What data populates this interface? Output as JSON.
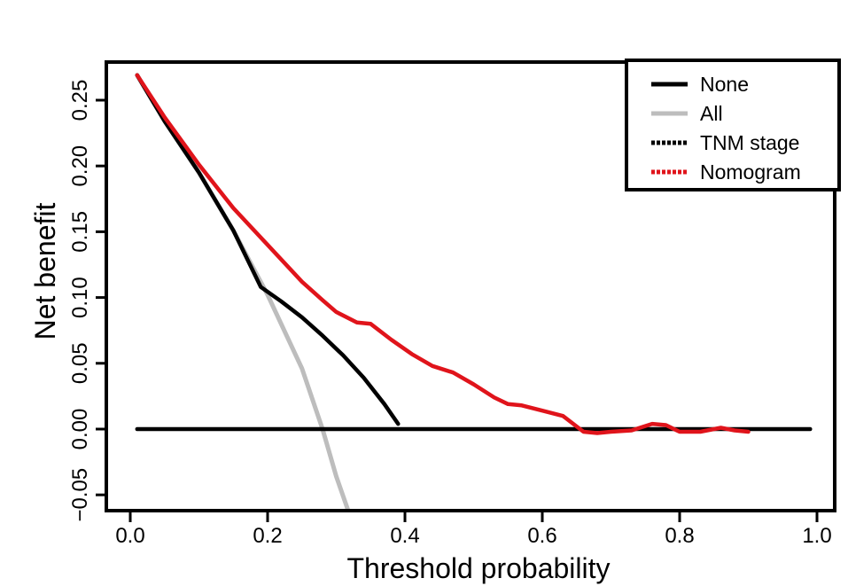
{
  "chart_data": {
    "type": "line",
    "title": "",
    "xlabel": "Threshold probability",
    "ylabel": "Net benefit",
    "xlim": [
      0.0,
      1.0
    ],
    "ylim": [
      -0.05,
      0.25
    ],
    "xticks": [
      "0.0",
      "0.2",
      "0.4",
      "0.6",
      "0.8",
      "1.0"
    ],
    "yticks": [
      "−0.05",
      "0.00",
      "0.05",
      "0.10",
      "0.15",
      "0.20",
      "0.25"
    ],
    "grid": false,
    "legend_position": "top-right",
    "series": [
      {
        "name": "None",
        "color": "#000000",
        "style": "solid",
        "x": [
          0.01,
          0.99
        ],
        "y": [
          0.0,
          0.0
        ]
      },
      {
        "name": "All",
        "color": "#bdbdbd",
        "style": "solid",
        "x": [
          0.01,
          0.05,
          0.1,
          0.15,
          0.2,
          0.25,
          0.28,
          0.3,
          0.32
        ],
        "y": [
          0.269,
          0.234,
          0.195,
          0.151,
          0.102,
          0.046,
          0.0,
          -0.036,
          -0.066
        ]
      },
      {
        "name": "TNM stage",
        "color": "#000000",
        "style": "dotted",
        "x": [
          0.01,
          0.05,
          0.1,
          0.15,
          0.19,
          0.22,
          0.25,
          0.28,
          0.31,
          0.34,
          0.37,
          0.39
        ],
        "y": [
          0.269,
          0.234,
          0.195,
          0.151,
          0.108,
          0.097,
          0.085,
          0.071,
          0.056,
          0.039,
          0.019,
          0.004
        ]
      },
      {
        "name": "Nomogram",
        "color": "#e0141b",
        "style": "dotted",
        "x": [
          0.01,
          0.05,
          0.1,
          0.15,
          0.2,
          0.25,
          0.28,
          0.3,
          0.33,
          0.35,
          0.38,
          0.41,
          0.44,
          0.47,
          0.5,
          0.53,
          0.55,
          0.57,
          0.6,
          0.63,
          0.66,
          0.68,
          0.7,
          0.73,
          0.76,
          0.78,
          0.8,
          0.83,
          0.86,
          0.88,
          0.9
        ],
        "y": [
          0.269,
          0.237,
          0.201,
          0.168,
          0.14,
          0.112,
          0.098,
          0.089,
          0.081,
          0.08,
          0.068,
          0.057,
          0.048,
          0.043,
          0.034,
          0.024,
          0.019,
          0.018,
          0.014,
          0.01,
          -0.002,
          -0.003,
          -0.002,
          -0.001,
          0.004,
          0.003,
          -0.002,
          -0.002,
          0.001,
          -0.001,
          -0.002
        ]
      }
    ]
  }
}
